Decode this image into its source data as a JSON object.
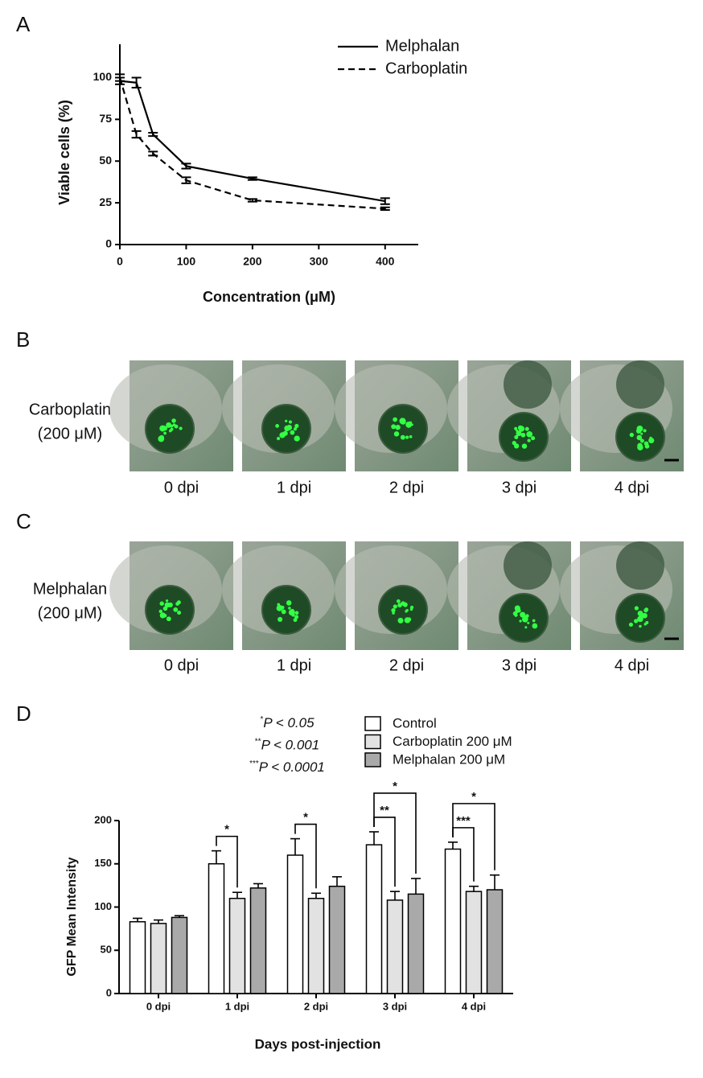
{
  "chart_data": [
    {
      "type": "line",
      "panel": "A",
      "x_label": "Concentration (μM)",
      "y_label": "Viable cells (%)",
      "x": [
        0,
        25,
        50,
        100,
        200,
        400
      ],
      "series": [
        {
          "name": "Melphalan",
          "color": "#000000",
          "dash": "solid",
          "values": [
            98,
            97,
            66,
            47,
            39.5,
            26
          ],
          "errors": [
            2,
            3,
            1,
            1.5,
            0.8,
            1.8
          ]
        },
        {
          "name": "Carboplatin",
          "color": "#000000",
          "dash": "dashed",
          "values": [
            100,
            66,
            54.5,
            38.5,
            26.5,
            21.5
          ],
          "errors": [
            2,
            2,
            1.2,
            1.8,
            0.8,
            0.8
          ]
        }
      ],
      "xlim": [
        0,
        450
      ],
      "ylim": [
        0,
        120
      ],
      "xticks": [
        0,
        100,
        200,
        300,
        400
      ],
      "yticks": [
        0,
        25,
        50,
        75,
        100
      ],
      "legend": "top-right"
    },
    {
      "type": "bar",
      "panel": "D",
      "x_label": "Days post-injection",
      "y_label": "GFP Mean Intensity",
      "categories": [
        "0 dpi",
        "1 dpi",
        "2 dpi",
        "3 dpi",
        "4 dpi"
      ],
      "series": [
        {
          "name": "Control",
          "color": "#ffffff",
          "values": [
            83,
            150,
            160,
            172,
            167
          ],
          "errors": [
            4,
            15,
            19,
            15,
            8
          ]
        },
        {
          "name": "Carboplatin 200 μM",
          "color": "#e2e2e2",
          "values": [
            81,
            110,
            110,
            108,
            118
          ],
          "errors": [
            4,
            7,
            6,
            10,
            6
          ]
        },
        {
          "name": "Melphalan 200 μM",
          "color": "#a9a9a9",
          "values": [
            88,
            122,
            124,
            115,
            120
          ],
          "errors": [
            2,
            5,
            11,
            18,
            17
          ]
        }
      ],
      "ylim": [
        0,
        200
      ],
      "yticks": [
        0,
        50,
        100,
        150,
        200
      ],
      "legend": "top-right",
      "significance": [
        {
          "category": "1 dpi",
          "series": [
            "Control",
            "Carboplatin 200 μM"
          ],
          "label": "*"
        },
        {
          "category": "2 dpi",
          "series": [
            "Control",
            "Carboplatin 200 μM"
          ],
          "label": "*"
        },
        {
          "category": "3 dpi",
          "series": [
            "Control",
            "Carboplatin 200 μM"
          ],
          "label": "**"
        },
        {
          "category": "3 dpi",
          "series": [
            "Control",
            "Melphalan 200 μM"
          ],
          "label": "*"
        },
        {
          "category": "4 dpi",
          "series": [
            "Control",
            "Carboplatin 200 μM"
          ],
          "label": "***"
        },
        {
          "category": "4 dpi",
          "series": [
            "Control",
            "Melphalan 200 μM"
          ],
          "label": "*"
        }
      ],
      "p_key": [
        {
          "stars": "*",
          "text": "P < 0.05"
        },
        {
          "stars": "**",
          "text": "P < 0.001"
        },
        {
          "stars": "***",
          "text": "P < 0.0001"
        }
      ]
    }
  ],
  "image_panels": [
    {
      "panel": "B",
      "label": [
        "Carboplatin",
        "(200 μM)"
      ],
      "captions": [
        "0 dpi",
        "1 dpi",
        "2 dpi",
        "3 dpi",
        "4 dpi"
      ]
    },
    {
      "panel": "C",
      "label": [
        "Melphalan",
        "(200 μM)"
      ],
      "captions": [
        "0 dpi",
        "1 dpi",
        "2 dpi",
        "3 dpi",
        "4 dpi"
      ]
    }
  ]
}
